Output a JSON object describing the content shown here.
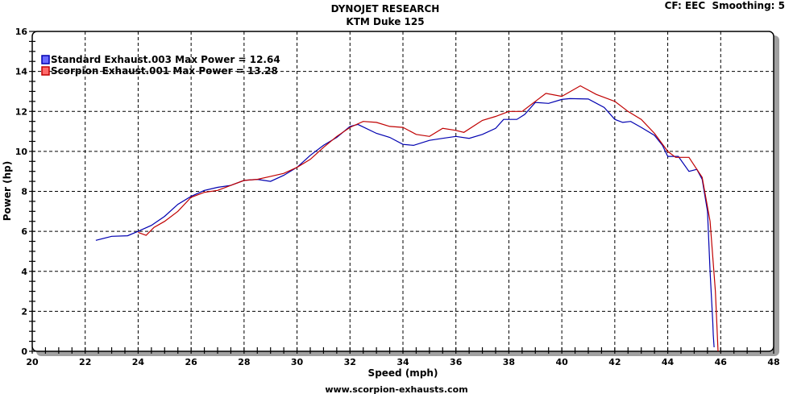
{
  "chart_data": {
    "type": "line",
    "title": "DYNOJET RESEARCH",
    "subtitle": "KTM Duke 125",
    "corner_note": "CF: EEC  Smoothing: 5",
    "xlabel": "Speed (mph)",
    "ylabel": "Power (hp)",
    "footer": "www.scorpion-exhausts.com",
    "xlim": [
      20,
      48
    ],
    "ylim": [
      0,
      16
    ],
    "xticks": [
      20,
      22,
      24,
      26,
      28,
      30,
      32,
      34,
      36,
      38,
      40,
      42,
      44,
      46,
      48
    ],
    "yticks": [
      0,
      2,
      4,
      6,
      8,
      10,
      12,
      14,
      16
    ],
    "grid": true,
    "legend_position": "top-left",
    "series": [
      {
        "name": "Standard Exhaust.003 Max Power = 12.64",
        "color": "#0000b0",
        "swatch": "#6a6aff",
        "x": [
          22.4,
          23,
          23.6,
          24,
          24.5,
          25,
          25.5,
          26,
          26.5,
          27,
          27.5,
          28,
          28.5,
          29,
          29.5,
          30,
          30.5,
          31,
          31.5,
          32,
          32.3,
          33,
          33.5,
          34,
          34.4,
          35,
          35.5,
          36,
          36.5,
          37,
          37.5,
          37.8,
          38.3,
          38.6,
          39,
          39.5,
          40,
          40.3,
          41,
          41.6,
          42,
          42.3,
          42.6,
          43,
          43.5,
          43.8,
          44,
          44.4,
          44.8,
          45.1,
          45.3,
          45.5,
          45.6,
          45.7,
          45.72,
          45.75
        ],
        "y": [
          5.55,
          5.75,
          5.78,
          6.0,
          6.3,
          6.75,
          7.35,
          7.75,
          8.05,
          8.2,
          8.3,
          8.55,
          8.6,
          8.5,
          8.8,
          9.2,
          9.8,
          10.3,
          10.7,
          11.25,
          11.35,
          10.9,
          10.7,
          10.35,
          10.3,
          10.55,
          10.65,
          10.75,
          10.65,
          10.85,
          11.15,
          11.6,
          11.6,
          11.85,
          12.45,
          12.4,
          12.6,
          12.64,
          12.62,
          12.2,
          11.6,
          11.45,
          11.5,
          11.2,
          10.8,
          10.3,
          9.75,
          9.75,
          9.0,
          9.1,
          8.6,
          7.0,
          4.0,
          1.5,
          0.8,
          0.2
        ]
      },
      {
        "name": "Scorpion Exhaust.001 Max Power = 13.28",
        "color": "#c00000",
        "swatch": "#ff6a6a",
        "x": [
          24,
          24.3,
          24.6,
          25,
          25.5,
          26,
          26.5,
          27,
          27.5,
          28,
          28.5,
          29,
          29.5,
          30,
          30.5,
          31,
          31.5,
          32,
          32.5,
          33,
          33.5,
          34,
          34.5,
          35,
          35.5,
          36,
          36.3,
          37,
          37.5,
          38,
          38.5,
          39,
          39.4,
          40,
          40.7,
          41.3,
          42,
          42.5,
          43,
          43.5,
          44,
          44.3,
          44.8,
          45,
          45.3,
          45.6,
          45.8,
          45.9
        ],
        "y": [
          5.95,
          5.8,
          6.2,
          6.5,
          7.0,
          7.7,
          7.95,
          8.05,
          8.3,
          8.55,
          8.6,
          8.75,
          8.9,
          9.2,
          9.6,
          10.2,
          10.75,
          11.2,
          11.5,
          11.45,
          11.25,
          11.2,
          10.85,
          10.75,
          11.15,
          11.05,
          10.95,
          11.55,
          11.75,
          12.0,
          12.0,
          12.5,
          12.9,
          12.75,
          13.28,
          12.85,
          12.5,
          12.0,
          11.6,
          10.9,
          10.0,
          9.7,
          9.7,
          9.3,
          8.7,
          6.5,
          3.0,
          0
        ]
      }
    ]
  }
}
